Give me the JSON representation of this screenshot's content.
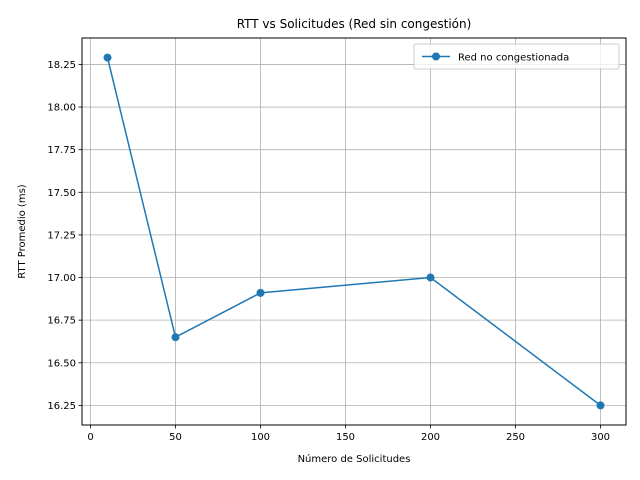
{
  "chart_data": {
    "type": "line",
    "title": "RTT vs Solicitudes (Red sin congestión)",
    "xlabel": "Número de Solicitudes",
    "ylabel": "RTT Promedio (ms)",
    "xlim": [
      -5,
      315
    ],
    "ylim": [
      16.135,
      18.405
    ],
    "xticks": [
      0,
      50,
      100,
      150,
      200,
      250,
      300
    ],
    "yticks": [
      16.25,
      16.5,
      16.75,
      17.0,
      17.25,
      17.5,
      17.75,
      18.0,
      18.25
    ],
    "ytick_labels": [
      "16.25",
      "16.50",
      "16.75",
      "17.00",
      "17.25",
      "17.50",
      "17.75",
      "18.00",
      "18.25"
    ],
    "grid": true,
    "legend_position": "top-right",
    "series": [
      {
        "name": "Red no congestionada",
        "color": "#1f77b4",
        "marker": "circle",
        "x": [
          10,
          50,
          100,
          200,
          300
        ],
        "y": [
          18.29,
          16.65,
          16.91,
          17.0,
          16.25
        ]
      }
    ]
  }
}
